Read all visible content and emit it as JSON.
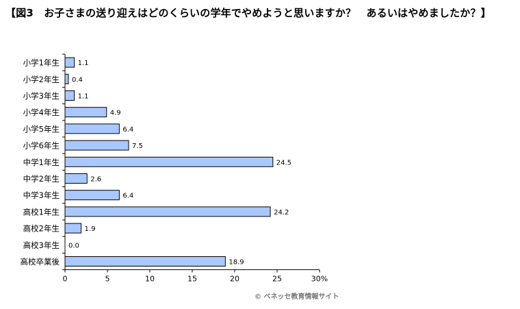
{
  "title": "【図3　お子さまの送り迎えはどのくらいの学年でやめようと思いますか？　あるいはやめましたか？】",
  "copyright": "© ベネッセ教育情報サイト",
  "colors": {
    "bar_fill": "#a9c8ff",
    "bar_stroke": "#000000",
    "axis": "#000000"
  },
  "chart_data": {
    "type": "bar",
    "orientation": "horizontal",
    "categories": [
      "小学1年生",
      "小学2年生",
      "小学3年生",
      "小学4年生",
      "小学5年生",
      "小学6年生",
      "中学1年生",
      "中学2年生",
      "中学3年生",
      "高校1年生",
      "高校2年生",
      "高校3年生",
      "高校卒業後"
    ],
    "values": [
      1.1,
      0.4,
      1.1,
      4.9,
      6.4,
      7.5,
      24.5,
      2.6,
      6.4,
      24.2,
      1.9,
      0.0,
      18.9
    ],
    "value_labels": [
      "1.1",
      "0.4",
      "1.1",
      "4.9",
      "6.4",
      "7.5",
      "24.5",
      "2.6",
      "6.4",
      "24.2",
      "1.9",
      "0.0",
      "18.9"
    ],
    "xlim": [
      0,
      30
    ],
    "xticks": [
      0,
      5,
      10,
      15,
      20,
      25,
      30
    ],
    "xtick_labels": [
      "0",
      "5",
      "10",
      "15",
      "20",
      "25",
      "30%"
    ],
    "xlabel": "",
    "ylabel": "",
    "grid": false,
    "legend": "none"
  }
}
